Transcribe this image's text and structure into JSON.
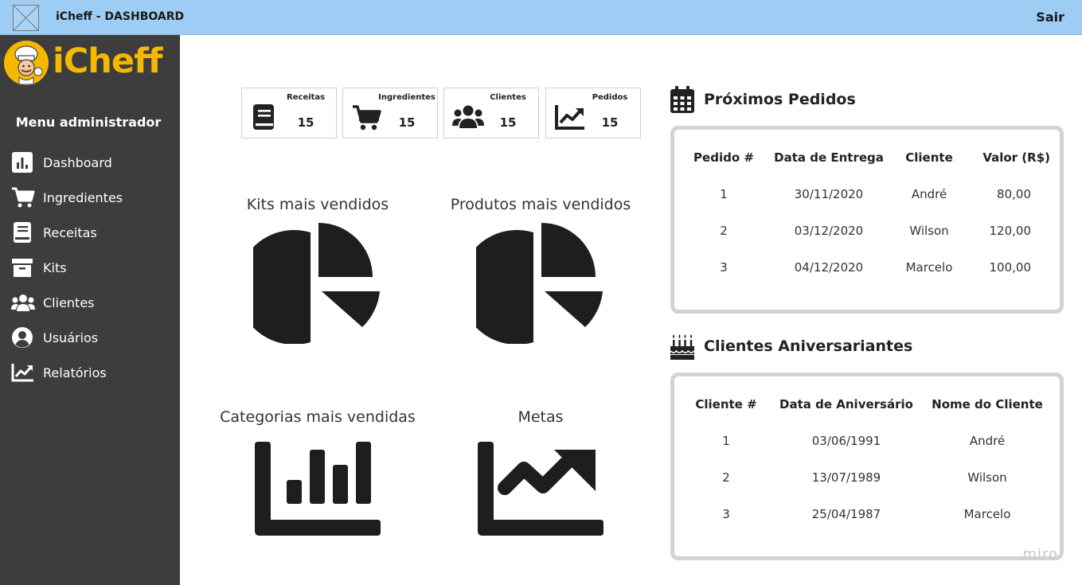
{
  "topbar": {
    "title": "iCheff - DASHBOARD",
    "logout_label": "Sair"
  },
  "brand": {
    "name": "iCheff"
  },
  "sidebar": {
    "menu_title": "Menu administrador",
    "items": [
      {
        "label": "Dashboard",
        "icon": "bar-chart-icon"
      },
      {
        "label": "Ingredientes",
        "icon": "cart-icon"
      },
      {
        "label": "Receitas",
        "icon": "book-icon"
      },
      {
        "label": "Kits",
        "icon": "archive-box-icon"
      },
      {
        "label": "Clientes",
        "icon": "users-icon"
      },
      {
        "label": "Usuários",
        "icon": "user-circle-icon"
      },
      {
        "label": "Relatórios",
        "icon": "trend-chart-icon"
      }
    ]
  },
  "stats": [
    {
      "label": "Receitas",
      "value": "15",
      "icon": "book-icon"
    },
    {
      "label": "Ingredientes",
      "value": "15",
      "icon": "cart-icon"
    },
    {
      "label": "Clientes",
      "value": "15",
      "icon": "users-icon"
    },
    {
      "label": "Pedidos",
      "value": "15",
      "icon": "trend-chart-icon"
    }
  ],
  "tiles": [
    {
      "title": "Kits mais vendidos",
      "icon": "pie-chart-icon"
    },
    {
      "title": "Produtos mais vendidos",
      "icon": "pie-chart-icon"
    },
    {
      "title": "Categorias mais vendidas",
      "icon": "bar-chart-icon"
    },
    {
      "title": "Metas",
      "icon": "trend-chart-icon"
    }
  ],
  "orders": {
    "title": "Próximos Pedidos",
    "headers": [
      "Pedido #",
      "Data de Entrega",
      "Cliente",
      "Valor (R$)"
    ],
    "rows": [
      [
        "1",
        "30/11/2020",
        "André",
        "80,00"
      ],
      [
        "2",
        "03/12/2020",
        "Wilson",
        "120,00"
      ],
      [
        "3",
        "04/12/2020",
        "Marcelo",
        "100,00"
      ]
    ]
  },
  "birthdays": {
    "title": "Clientes Aniversariantes",
    "headers": [
      "Cliente #",
      "Data de Aniversário",
      "Nome do Cliente"
    ],
    "rows": [
      [
        "1",
        "03/06/1991",
        "André"
      ],
      [
        "2",
        "13/07/1989",
        "Wilson"
      ],
      [
        "3",
        "25/04/1987",
        "Marcelo"
      ]
    ]
  },
  "watermark": "miro"
}
